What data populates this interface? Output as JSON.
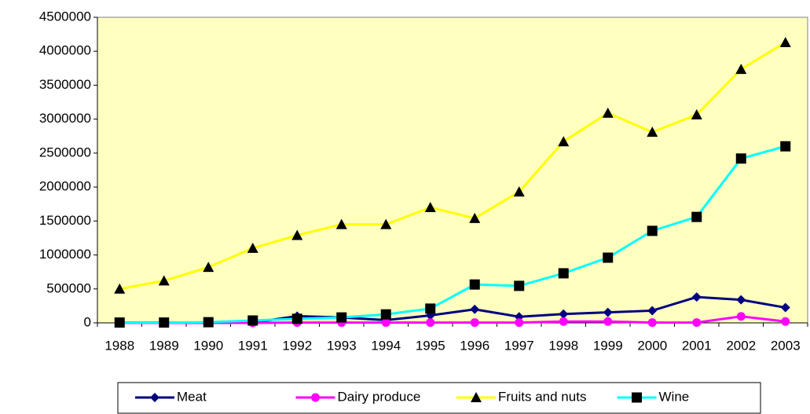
{
  "chart_data": {
    "type": "line",
    "categories": [
      "1988",
      "1989",
      "1990",
      "1991",
      "1992",
      "1993",
      "1994",
      "1995",
      "1996",
      "1997",
      "1998",
      "1999",
      "2000",
      "2001",
      "2002",
      "2003"
    ],
    "series": [
      {
        "name": "Meat",
        "color": "#000080",
        "marker": "diamond",
        "marker_color": "#000080",
        "values": [
          5000,
          5000,
          5000,
          5000,
          100000,
          80000,
          40000,
          110000,
          200000,
          90000,
          130000,
          155000,
          180000,
          380000,
          340000,
          225000
        ]
      },
      {
        "name": "Dairy produce",
        "color": "#ff00ff",
        "marker": "circle",
        "marker_color": "#ff00ff",
        "values": [
          0,
          0,
          0,
          0,
          5000,
          5000,
          5000,
          5000,
          5000,
          5000,
          20000,
          20000,
          5000,
          5000,
          95000,
          20000
        ]
      },
      {
        "name": "Fruits and nuts",
        "color": "#ffff00",
        "marker": "triangle",
        "marker_color": "#000000",
        "values": [
          500000,
          620000,
          820000,
          1100000,
          1290000,
          1450000,
          1450000,
          1700000,
          1540000,
          1930000,
          2670000,
          3090000,
          2810000,
          3065000,
          3735000,
          4130000
        ]
      },
      {
        "name": "Wine",
        "color": "#00ffff",
        "marker": "square",
        "marker_color": "#000000",
        "values": [
          5000,
          5000,
          10000,
          35000,
          60000,
          80000,
          125000,
          210000,
          565000,
          545000,
          730000,
          960000,
          1355000,
          1560000,
          2420000,
          2600000
        ]
      }
    ],
    "ylim": [
      0,
      4500000
    ],
    "yticks": [
      0,
      500000,
      1000000,
      1500000,
      2000000,
      2500000,
      3000000,
      3500000,
      4000000,
      4500000
    ],
    "plot_background": "#ffffc0",
    "legend": "bottom"
  }
}
